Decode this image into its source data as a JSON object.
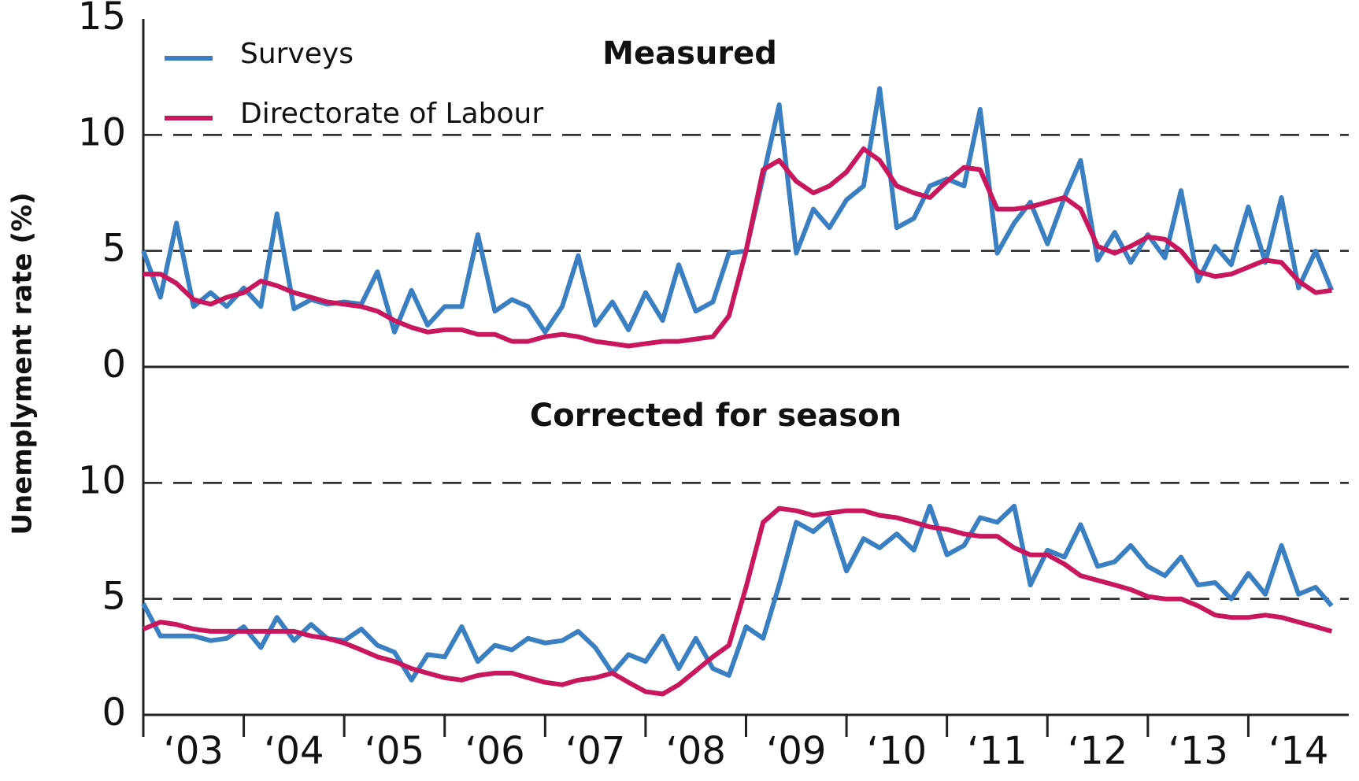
{
  "chart_data": [
    {
      "type": "line",
      "title": "Measured",
      "ylabel": "Unemplyment rate (%)",
      "x": [
        2003,
        2003.17,
        2003.33,
        2003.5,
        2003.67,
        2003.83,
        2004,
        2004.17,
        2004.33,
        2004.5,
        2004.67,
        2004.83,
        2005,
        2005.17,
        2005.33,
        2005.5,
        2005.67,
        2005.83,
        2006,
        2006.17,
        2006.33,
        2006.5,
        2006.67,
        2006.83,
        2007,
        2007.17,
        2007.33,
        2007.5,
        2007.67,
        2007.83,
        2008,
        2008.17,
        2008.33,
        2008.5,
        2008.67,
        2008.83,
        2009,
        2009.17,
        2009.33,
        2009.5,
        2009.67,
        2009.83,
        2010,
        2010.17,
        2010.33,
        2010.5,
        2010.67,
        2010.83,
        2011,
        2011.17,
        2011.33,
        2011.5,
        2011.67,
        2011.83,
        2012,
        2012.17,
        2012.33,
        2012.5,
        2012.67,
        2012.83,
        2013,
        2013.17,
        2013.33,
        2013.5,
        2013.67,
        2013.83,
        2014,
        2014.17,
        2014.33,
        2014.5,
        2014.67,
        2014.83
      ],
      "xlim": [
        2003,
        2015
      ],
      "ylim": [
        0,
        15
      ],
      "yticks": [
        0,
        5,
        10,
        15
      ],
      "grid": true,
      "legend": "upper left",
      "series": [
        {
          "name": "Surveys",
          "color": "#3a7fc1",
          "values": [
            5.0,
            3.0,
            6.2,
            2.6,
            3.2,
            2.6,
            3.4,
            2.6,
            6.6,
            2.5,
            2.9,
            2.7,
            2.8,
            2.7,
            4.1,
            1.5,
            3.3,
            1.8,
            2.6,
            2.6,
            5.7,
            2.4,
            2.9,
            2.6,
            1.5,
            2.6,
            4.8,
            1.8,
            2.8,
            1.6,
            3.2,
            2.0,
            4.4,
            2.4,
            2.8,
            4.9,
            5.0,
            8.2,
            11.3,
            4.9,
            6.8,
            6.0,
            7.2,
            7.8,
            12.0,
            6.0,
            6.4,
            7.8,
            8.1,
            7.8,
            11.1,
            4.9,
            6.2,
            7.1,
            5.3,
            7.3,
            8.9,
            4.6,
            5.8,
            4.5,
            5.7,
            4.7,
            7.6,
            3.7,
            5.2,
            4.4,
            6.9,
            4.5,
            7.3,
            3.4,
            5.0,
            3.3
          ]
        },
        {
          "name": "Directorate of Labour",
          "color": "#c8175d",
          "values": [
            4.0,
            4.0,
            3.6,
            2.9,
            2.7,
            3.0,
            3.2,
            3.7,
            3.5,
            3.2,
            3.0,
            2.8,
            2.7,
            2.6,
            2.4,
            2.0,
            1.7,
            1.5,
            1.6,
            1.6,
            1.4,
            1.4,
            1.1,
            1.1,
            1.3,
            1.4,
            1.3,
            1.1,
            1.0,
            0.9,
            1.0,
            1.1,
            1.1,
            1.2,
            1.3,
            2.2,
            5.0,
            8.5,
            8.9,
            8.0,
            7.5,
            7.8,
            8.4,
            9.4,
            8.9,
            7.8,
            7.5,
            7.3,
            8.0,
            8.6,
            8.5,
            6.8,
            6.8,
            6.9,
            7.1,
            7.3,
            6.8,
            5.2,
            4.9,
            5.2,
            5.6,
            5.5,
            5.0,
            4.1,
            3.9,
            4.0,
            4.3,
            4.6,
            4.5,
            3.7,
            3.2,
            3.3
          ]
        }
      ]
    },
    {
      "type": "line",
      "title": "Corrected for season",
      "x": [
        2003,
        2003.17,
        2003.33,
        2003.5,
        2003.67,
        2003.83,
        2004,
        2004.17,
        2004.33,
        2004.5,
        2004.67,
        2004.83,
        2005,
        2005.17,
        2005.33,
        2005.5,
        2005.67,
        2005.83,
        2006,
        2006.17,
        2006.33,
        2006.5,
        2006.67,
        2006.83,
        2007,
        2007.17,
        2007.33,
        2007.5,
        2007.67,
        2007.83,
        2008,
        2008.17,
        2008.33,
        2008.5,
        2008.67,
        2008.83,
        2009,
        2009.17,
        2009.33,
        2009.5,
        2009.67,
        2009.83,
        2010,
        2010.17,
        2010.33,
        2010.5,
        2010.67,
        2010.83,
        2011,
        2011.17,
        2011.33,
        2011.5,
        2011.67,
        2011.83,
        2012,
        2012.17,
        2012.33,
        2012.5,
        2012.67,
        2012.83,
        2013,
        2013.17,
        2013.33,
        2013.5,
        2013.67,
        2013.83,
        2014,
        2014.17,
        2014.33,
        2014.5,
        2014.67,
        2014.83
      ],
      "xlim": [
        2003,
        2015
      ],
      "ylim": [
        0,
        15
      ],
      "yticks": [
        0,
        5,
        10
      ],
      "grid": true,
      "xticks": [
        {
          "value": 2003.5,
          "label": "‘03"
        },
        {
          "value": 2004.5,
          "label": "‘04"
        },
        {
          "value": 2005.5,
          "label": "‘05"
        },
        {
          "value": 2006.5,
          "label": "‘06"
        },
        {
          "value": 2007.5,
          "label": "‘07"
        },
        {
          "value": 2008.5,
          "label": "‘08"
        },
        {
          "value": 2009.5,
          "label": "‘09"
        },
        {
          "value": 2010.5,
          "label": "‘10"
        },
        {
          "value": 2011.5,
          "label": "‘11"
        },
        {
          "value": 2012.5,
          "label": "‘12"
        },
        {
          "value": 2013.5,
          "label": "‘13"
        },
        {
          "value": 2014.5,
          "label": "‘14"
        }
      ],
      "series": [
        {
          "color": "#3a7fc1",
          "values": [
            4.8,
            3.4,
            3.4,
            3.4,
            3.2,
            3.3,
            3.8,
            2.9,
            4.2,
            3.2,
            3.9,
            3.3,
            3.2,
            3.7,
            3.0,
            2.7,
            1.5,
            2.6,
            2.5,
            3.8,
            2.3,
            3.0,
            2.8,
            3.3,
            3.1,
            3.2,
            3.6,
            2.9,
            1.8,
            2.6,
            2.3,
            3.4,
            2.0,
            3.3,
            2.0,
            1.7,
            3.8,
            3.3,
            5.6,
            8.3,
            7.9,
            8.5,
            6.2,
            7.6,
            7.2,
            7.8,
            7.1,
            9.0,
            6.9,
            7.3,
            8.5,
            8.3,
            9.0,
            5.6,
            7.1,
            6.8,
            8.2,
            6.4,
            6.6,
            7.3,
            6.4,
            6.0,
            6.8,
            5.6,
            5.7,
            5.0,
            6.1,
            5.2,
            7.3,
            5.2,
            5.5,
            4.7
          ]
        },
        {
          "color": "#c8175d",
          "values": [
            3.7,
            4.0,
            3.9,
            3.7,
            3.6,
            3.6,
            3.6,
            3.6,
            3.6,
            3.6,
            3.4,
            3.3,
            3.1,
            2.8,
            2.5,
            2.3,
            2.0,
            1.8,
            1.6,
            1.5,
            1.7,
            1.8,
            1.8,
            1.6,
            1.4,
            1.3,
            1.5,
            1.6,
            1.8,
            1.4,
            1.0,
            0.9,
            1.3,
            1.9,
            2.5,
            3.0,
            5.5,
            8.3,
            8.9,
            8.8,
            8.6,
            8.7,
            8.8,
            8.8,
            8.6,
            8.5,
            8.3,
            8.1,
            8.0,
            7.8,
            7.7,
            7.7,
            7.2,
            6.9,
            6.9,
            6.5,
            6.0,
            5.8,
            5.6,
            5.4,
            5.1,
            5.0,
            5.0,
            4.7,
            4.3,
            4.2,
            4.2,
            4.3,
            4.2,
            4.0,
            3.8,
            3.6
          ]
        }
      ]
    }
  ]
}
